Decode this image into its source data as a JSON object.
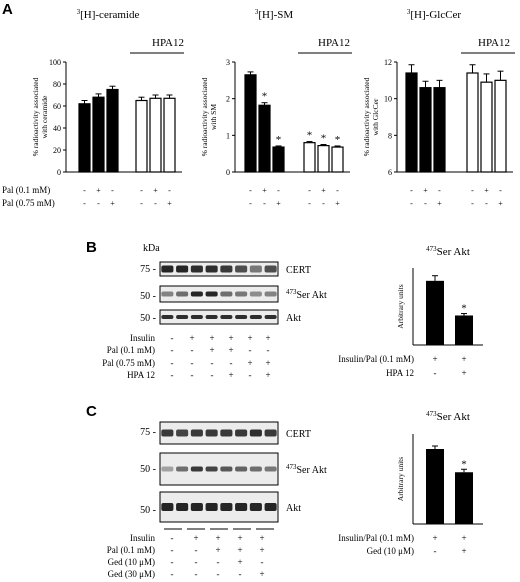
{
  "panels": {
    "a": "A",
    "b": "B",
    "c": "C"
  },
  "panel_a": {
    "charts": [
      {
        "title_sup": "3",
        "title_main": "[H]-ceramide",
        "ylabel_lines": [
          "% radioactivity associated",
          "with ceramide"
        ],
        "ylim": [
          0,
          100
        ],
        "ticks": [
          "0",
          "20",
          "40",
          "60",
          "80",
          "100"
        ],
        "tick_values": [
          0,
          20,
          40,
          60,
          80,
          100
        ],
        "hpa_label": "HPA12",
        "control_values": [
          62,
          68,
          75
        ],
        "control_err": [
          3,
          3,
          3
        ],
        "hpa_values": [
          65,
          67,
          67
        ],
        "hpa_err": [
          3,
          3,
          3
        ],
        "stars": [
          "",
          "",
          "",
          "",
          "",
          ""
        ]
      },
      {
        "title_sup": "3",
        "title_main": "[H]-SM",
        "ylabel_lines": [
          "% radioactivity associated",
          "with SM"
        ],
        "ylim": [
          0,
          3
        ],
        "ticks": [
          "0",
          "1",
          "2",
          "3"
        ],
        "tick_values": [
          0,
          1,
          2,
          3
        ],
        "hpa_label": "HPA12",
        "control_values": [
          2.65,
          1.82,
          0.68
        ],
        "control_err": [
          0.08,
          0.07,
          0.03
        ],
        "hpa_values": [
          0.8,
          0.72,
          0.68
        ],
        "hpa_err": [
          0.03,
          0.03,
          0.03
        ],
        "stars": [
          "",
          "*",
          "*",
          "*",
          "*",
          "*"
        ]
      },
      {
        "title_sup": "3",
        "title_main": "[H]-GlcCer",
        "ylabel_lines": [
          "% radioactivity associated",
          "with GlcCer"
        ],
        "ylim": [
          6,
          12
        ],
        "ticks": [
          "6",
          "8",
          "10",
          "12"
        ],
        "tick_values": [
          6,
          8,
          10,
          12
        ],
        "hpa_label": "HPA12",
        "control_values": [
          11.4,
          10.6,
          10.6
        ],
        "control_err": [
          0.45,
          0.35,
          0.4
        ],
        "hpa_values": [
          11.4,
          10.9,
          11.0
        ],
        "hpa_err": [
          0.45,
          0.45,
          0.5
        ],
        "stars": [
          "",
          "",
          "",
          "",
          "",
          ""
        ]
      }
    ],
    "rows": [
      {
        "label": "Pal (0.1 mM)",
        "signs": [
          "-",
          "+",
          "-",
          "-",
          "+",
          "-"
        ]
      },
      {
        "label": "Pal (0.75 mM)",
        "signs": [
          "-",
          "-",
          "+",
          "-",
          "-",
          "+"
        ]
      }
    ]
  },
  "panel_b": {
    "kda": "kDa",
    "markers": [
      "75 -",
      "50 -",
      "50 -"
    ],
    "blots": [
      "CERT",
      "Ser Akt",
      "Akt"
    ],
    "blot_sup": "473",
    "rows": [
      {
        "label": "Insulin",
        "signs": [
          "-",
          "+",
          "+",
          "+",
          "+",
          "+"
        ]
      },
      {
        "label": "Pal (0.1 mM)",
        "signs": [
          "-",
          "-",
          "+",
          "+",
          "-",
          "-"
        ]
      },
      {
        "label": "Pal (0.75 mM)",
        "signs": [
          "-",
          "-",
          "-",
          "-",
          "+",
          "+"
        ]
      },
      {
        "label": "HPA 12",
        "signs": [
          "-",
          "-",
          "-",
          "+",
          "-",
          "+"
        ]
      }
    ],
    "chart_title_sup": "473",
    "chart_title_main": "Ser Akt",
    "chart_ylabel": "Arbitrary units",
    "chart_rows": [
      {
        "label": "Insulin/Pal (0.1 mM)",
        "signs": [
          "+",
          "+"
        ]
      },
      {
        "label": "HPA 12",
        "signs": [
          "-",
          "+"
        ]
      }
    ]
  },
  "panel_c": {
    "markers": [
      "75 -",
      "50 -",
      "50 -"
    ],
    "blots": [
      "CERT",
      "Ser Akt",
      "Akt"
    ],
    "blot_sup": "473",
    "rows": [
      {
        "label": "Insulin",
        "signs": [
          "-",
          "+",
          "+",
          "+",
          "+"
        ]
      },
      {
        "label": "Pal (0.1 mM)",
        "signs": [
          "-",
          "-",
          "+",
          "+",
          "+"
        ]
      },
      {
        "label": "Ged (10 μM)",
        "signs": [
          "-",
          "-",
          "-",
          "+",
          "-"
        ]
      },
      {
        "label": "Ged (30 μM)",
        "signs": [
          "-",
          "-",
          "-",
          "-",
          "+"
        ]
      }
    ],
    "chart_title_sup": "473",
    "chart_title_main": "Ser Akt",
    "chart_ylabel": "Arbitrary units",
    "chart_rows": [
      {
        "label": "Insulin/Pal (0.1 mM)",
        "signs": [
          "+",
          "+"
        ]
      },
      {
        "label": "Ged (10 μM)",
        "signs": [
          "-",
          "+"
        ]
      }
    ]
  },
  "chart_data": [
    {
      "type": "bar",
      "title": "[3H]-ceramide",
      "ylabel": "% radioactivity associated with ceramide",
      "ylim": [
        0,
        100
      ],
      "series": [
        {
          "values": [
            62,
            68,
            75
          ],
          "errors": [
            3,
            3,
            3
          ]
        },
        {
          "name": "HPA12",
          "values": [
            65,
            67,
            67
          ],
          "errors": [
            3,
            3,
            3
          ]
        }
      ]
    },
    {
      "type": "bar",
      "title": "[3H]-SM",
      "ylabel": "% radioactivity associated with SM",
      "ylim": [
        0,
        3
      ],
      "series": [
        {
          "values": [
            2.65,
            1.82,
            0.68
          ],
          "errors": [
            0.08,
            0.07,
            0.03
          ]
        },
        {
          "name": "HPA12",
          "values": [
            0.8,
            0.72,
            0.68
          ],
          "errors": [
            0.03,
            0.03,
            0.03
          ]
        }
      ]
    },
    {
      "type": "bar",
      "title": "[3H]-GlcCer",
      "ylabel": "% radioactivity associated with GlcCer",
      "ylim": [
        6,
        12
      ],
      "series": [
        {
          "values": [
            11.4,
            10.6,
            10.6
          ],
          "errors": [
            0.45,
            0.35,
            0.4
          ]
        },
        {
          "name": "HPA12",
          "values": [
            11.4,
            10.9,
            11.0
          ],
          "errors": [
            0.45,
            0.45,
            0.5
          ]
        }
      ]
    },
    {
      "type": "bar",
      "title": "473Ser Akt",
      "ylabel": "Arbitrary units",
      "ylim": [
        0,
        1.2
      ],
      "values": [
        1.0,
        0.46
      ],
      "errors": [
        0.08,
        0.03
      ],
      "stars": [
        "",
        "*"
      ]
    },
    {
      "type": "bar",
      "title": "473Ser Akt",
      "ylabel": "Arbitrary units",
      "ylim": [
        0,
        1.2
      ],
      "values": [
        1.0,
        0.69
      ],
      "errors": [
        0.04,
        0.04
      ],
      "stars": [
        "",
        "*"
      ]
    }
  ],
  "colors": {
    "filled_bar": "#000000",
    "open_bar": "#ffffff",
    "band": "#1a1a1a",
    "blot_bg": "#ececec"
  }
}
